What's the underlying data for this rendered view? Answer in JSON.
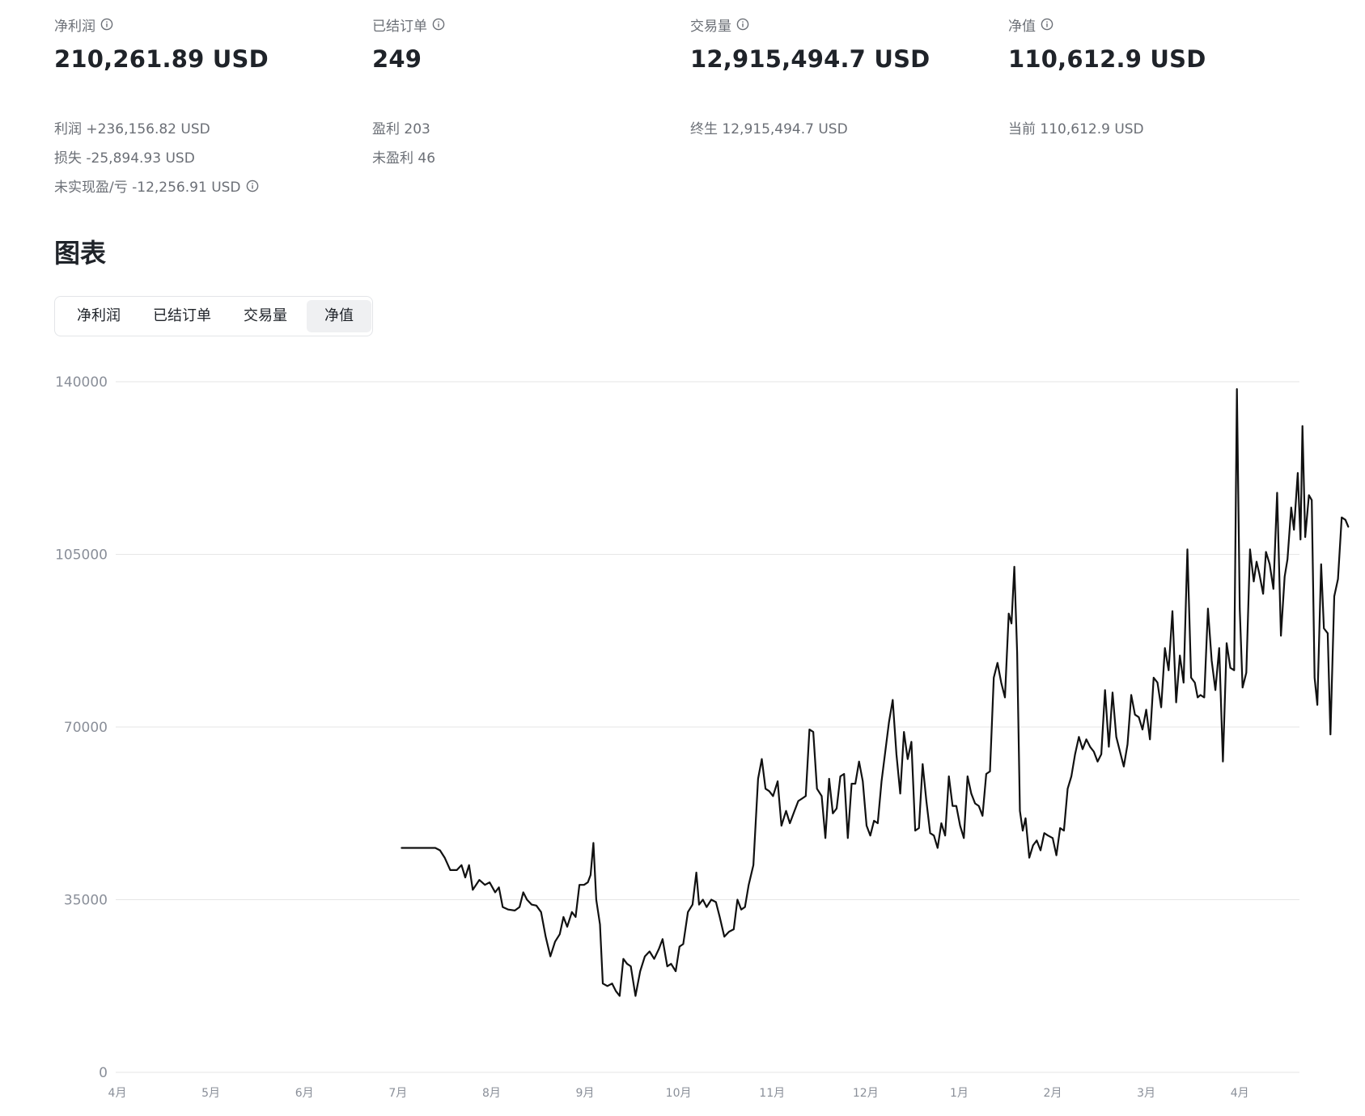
{
  "stats": [
    {
      "label": "净利润",
      "value": "210,261.89 USD"
    },
    {
      "label": "已结订单",
      "value": "249"
    },
    {
      "label": "交易量",
      "value": "12,915,494.7 USD"
    },
    {
      "label": "净值",
      "value": "110,612.9 USD"
    }
  ],
  "details": {
    "profit": "利润 +236,156.82 USD",
    "loss": "损失 -25,894.93 USD",
    "unrealized": "未实现盈/亏 -12,256.91 USD",
    "profitable": "盈利 203",
    "unprofitable": "未盈利 46",
    "lifetime": "终生 12,915,494.7 USD",
    "current": "当前 110,612.9 USD"
  },
  "section_title": "图表",
  "tabs": [
    {
      "label": "净利润",
      "active": false
    },
    {
      "label": "已结订单",
      "active": false
    },
    {
      "label": "交易量",
      "active": false
    },
    {
      "label": "净值",
      "active": true
    }
  ],
  "colors": {
    "line": "#111111",
    "grid": "#e6e6e6",
    "axis_text": "#8a8f99"
  },
  "chart_data": {
    "type": "line",
    "title": "",
    "xlabel": "",
    "ylabel": "",
    "ylim": [
      0,
      140000
    ],
    "yticks": [
      0,
      35000,
      70000,
      105000,
      140000
    ],
    "xlim": [
      0,
      12.65
    ],
    "xticks": [
      {
        "label": "4月",
        "x": 0
      },
      {
        "label": "5月",
        "x": 1
      },
      {
        "label": "6月",
        "x": 2
      },
      {
        "label": "7月",
        "x": 3
      },
      {
        "label": "8月",
        "x": 4
      },
      {
        "label": "9月",
        "x": 5
      },
      {
        "label": "10月",
        "x": 6
      },
      {
        "label": "11月",
        "x": 7
      },
      {
        "label": "12月",
        "x": 8
      },
      {
        "label": "1月",
        "x": 9
      },
      {
        "label": "2月",
        "x": 10
      },
      {
        "label": "3月",
        "x": 11
      },
      {
        "label": "4月",
        "x": 12
      }
    ],
    "grid": true,
    "legend": "none",
    "series": [
      {
        "name": "净值",
        "points": [
          [
            3.04,
            45500
          ],
          [
            3.2,
            45500
          ],
          [
            3.4,
            45500
          ],
          [
            3.45,
            45000
          ],
          [
            3.5,
            43500
          ],
          [
            3.56,
            41000
          ],
          [
            3.63,
            41000
          ],
          [
            3.68,
            42000
          ],
          [
            3.72,
            39500
          ],
          [
            3.76,
            42000
          ],
          [
            3.8,
            37000
          ],
          [
            3.87,
            39000
          ],
          [
            3.93,
            38000
          ],
          [
            3.98,
            38500
          ],
          [
            4.04,
            36500
          ],
          [
            4.08,
            37500
          ],
          [
            4.12,
            33500
          ],
          [
            4.18,
            33000
          ],
          [
            4.25,
            32800
          ],
          [
            4.3,
            33500
          ],
          [
            4.34,
            36500
          ],
          [
            4.38,
            35000
          ],
          [
            4.43,
            34000
          ],
          [
            4.48,
            33800
          ],
          [
            4.53,
            32500
          ],
          [
            4.58,
            27500
          ],
          [
            4.63,
            23500
          ],
          [
            4.68,
            26500
          ],
          [
            4.73,
            28000
          ],
          [
            4.77,
            31500
          ],
          [
            4.81,
            29500
          ],
          [
            4.86,
            32500
          ],
          [
            4.9,
            31500
          ],
          [
            4.94,
            38000
          ],
          [
            4.99,
            38000
          ],
          [
            5.03,
            38500
          ],
          [
            5.06,
            40000
          ],
          [
            5.09,
            46500
          ],
          [
            5.12,
            35000
          ],
          [
            5.16,
            30000
          ],
          [
            5.19,
            18000
          ],
          [
            5.24,
            17500
          ],
          [
            5.29,
            18000
          ],
          [
            5.33,
            16500
          ],
          [
            5.37,
            15500
          ],
          [
            5.41,
            23000
          ],
          [
            5.45,
            22000
          ],
          [
            5.49,
            21500
          ],
          [
            5.54,
            15500
          ],
          [
            5.59,
            20500
          ],
          [
            5.64,
            23500
          ],
          [
            5.69,
            24500
          ],
          [
            5.74,
            23000
          ],
          [
            5.79,
            25000
          ],
          [
            5.83,
            27000
          ],
          [
            5.88,
            21500
          ],
          [
            5.92,
            22000
          ],
          [
            5.97,
            20500
          ],
          [
            6.01,
            25500
          ],
          [
            6.05,
            26000
          ],
          [
            6.1,
            32500
          ],
          [
            6.15,
            34000
          ],
          [
            6.19,
            40500
          ],
          [
            6.22,
            34000
          ],
          [
            6.26,
            35000
          ],
          [
            6.3,
            33500
          ],
          [
            6.35,
            35000
          ],
          [
            6.4,
            34500
          ],
          [
            6.44,
            31500
          ],
          [
            6.49,
            27500
          ],
          [
            6.54,
            28500
          ],
          [
            6.59,
            29000
          ],
          [
            6.63,
            35000
          ],
          [
            6.67,
            33000
          ],
          [
            6.71,
            33500
          ],
          [
            6.75,
            38000
          ],
          [
            6.8,
            42000
          ],
          [
            6.85,
            59500
          ],
          [
            6.89,
            63500
          ],
          [
            6.93,
            57500
          ],
          [
            6.97,
            57000
          ],
          [
            7.01,
            56000
          ],
          [
            7.06,
            59000
          ],
          [
            7.1,
            50000
          ],
          [
            7.15,
            53000
          ],
          [
            7.19,
            50500
          ],
          [
            7.24,
            53000
          ],
          [
            7.28,
            55000
          ],
          [
            7.32,
            55500
          ],
          [
            7.36,
            56000
          ],
          [
            7.4,
            69500
          ],
          [
            7.44,
            69000
          ],
          [
            7.48,
            57500
          ],
          [
            7.53,
            56000
          ],
          [
            7.57,
            47500
          ],
          [
            7.61,
            59500
          ],
          [
            7.65,
            52500
          ],
          [
            7.69,
            53500
          ],
          [
            7.73,
            60000
          ],
          [
            7.77,
            60500
          ],
          [
            7.81,
            47500
          ],
          [
            7.85,
            58500
          ],
          [
            7.89,
            58500
          ],
          [
            7.93,
            63000
          ],
          [
            7.97,
            59000
          ],
          [
            8.01,
            50000
          ],
          [
            8.05,
            48000
          ],
          [
            8.09,
            51000
          ],
          [
            8.13,
            50500
          ],
          [
            8.17,
            59000
          ],
          [
            8.21,
            65000
          ],
          [
            8.25,
            71000
          ],
          [
            8.29,
            75500
          ],
          [
            8.33,
            64500
          ],
          [
            8.37,
            56500
          ],
          [
            8.41,
            69000
          ],
          [
            8.45,
            63500
          ],
          [
            8.49,
            67000
          ],
          [
            8.53,
            49000
          ],
          [
            8.57,
            49500
          ],
          [
            8.61,
            62500
          ],
          [
            8.65,
            55000
          ],
          [
            8.69,
            48500
          ],
          [
            8.73,
            48000
          ],
          [
            8.77,
            45500
          ],
          [
            8.81,
            50500
          ],
          [
            8.85,
            48000
          ],
          [
            8.89,
            60000
          ],
          [
            8.93,
            54000
          ],
          [
            8.97,
            54000
          ],
          [
            9.01,
            50000
          ],
          [
            9.05,
            47500
          ],
          [
            9.09,
            60000
          ],
          [
            9.13,
            56500
          ],
          [
            9.17,
            54500
          ],
          [
            9.21,
            54000
          ],
          [
            9.25,
            52000
          ],
          [
            9.29,
            60500
          ],
          [
            9.33,
            61000
          ],
          [
            9.37,
            80000
          ],
          [
            9.41,
            83000
          ],
          [
            9.45,
            79000
          ],
          [
            9.49,
            76000
          ],
          [
            9.53,
            93000
          ],
          [
            9.56,
            91000
          ],
          [
            9.59,
            102500
          ],
          [
            9.62,
            85000
          ],
          [
            9.65,
            53000
          ],
          [
            9.68,
            49000
          ],
          [
            9.71,
            51500
          ],
          [
            9.75,
            43500
          ],
          [
            9.79,
            46000
          ],
          [
            9.83,
            47000
          ],
          [
            9.87,
            45000
          ],
          [
            9.91,
            48500
          ],
          [
            9.95,
            48000
          ],
          [
            10.0,
            47500
          ],
          [
            10.04,
            44000
          ],
          [
            10.08,
            49500
          ],
          [
            10.12,
            49000
          ],
          [
            10.16,
            57500
          ],
          [
            10.2,
            60000
          ],
          [
            10.24,
            64500
          ],
          [
            10.28,
            68000
          ],
          [
            10.32,
            65500
          ],
          [
            10.36,
            67500
          ],
          [
            10.4,
            66000
          ],
          [
            10.44,
            65000
          ],
          [
            10.48,
            63000
          ],
          [
            10.52,
            64500
          ],
          [
            10.56,
            77500
          ],
          [
            10.6,
            66000
          ],
          [
            10.64,
            77000
          ],
          [
            10.68,
            68000
          ],
          [
            10.72,
            65000
          ],
          [
            10.76,
            62000
          ],
          [
            10.8,
            66500
          ],
          [
            10.84,
            76500
          ],
          [
            10.88,
            72500
          ],
          [
            10.92,
            72000
          ],
          [
            10.96,
            69500
          ],
          [
            11.0,
            73500
          ],
          [
            11.04,
            67500
          ],
          [
            11.08,
            80000
          ],
          [
            11.12,
            79000
          ],
          [
            11.16,
            74000
          ],
          [
            11.2,
            86000
          ],
          [
            11.24,
            81500
          ],
          [
            11.28,
            93500
          ],
          [
            11.32,
            75000
          ],
          [
            11.36,
            84500
          ],
          [
            11.4,
            79000
          ],
          [
            11.44,
            106000
          ],
          [
            11.48,
            80000
          ],
          [
            11.52,
            79000
          ],
          [
            11.55,
            76000
          ],
          [
            11.58,
            76500
          ],
          [
            11.62,
            76000
          ],
          [
            11.66,
            94000
          ],
          [
            11.7,
            83500
          ],
          [
            11.74,
            77500
          ],
          [
            11.78,
            86000
          ],
          [
            11.82,
            63000
          ],
          [
            11.86,
            87000
          ],
          [
            11.9,
            82000
          ],
          [
            11.94,
            81500
          ],
          [
            11.97,
            138500
          ],
          [
            12.0,
            94000
          ],
          [
            12.03,
            78000
          ],
          [
            12.07,
            81000
          ],
          [
            12.11,
            106000
          ],
          [
            12.15,
            99500
          ],
          [
            12.18,
            103500
          ],
          [
            12.21,
            101000
          ],
          [
            12.25,
            97000
          ],
          [
            12.28,
            105500
          ],
          [
            12.32,
            103000
          ],
          [
            12.36,
            98000
          ],
          [
            12.4,
            117500
          ],
          [
            12.44,
            88500
          ],
          [
            12.48,
            100500
          ],
          [
            12.51,
            104000
          ],
          [
            12.55,
            114500
          ],
          [
            12.58,
            110000
          ],
          [
            12.62,
            121500
          ],
          [
            12.65,
            108000
          ],
          [
            12.67,
            131000
          ],
          [
            12.7,
            108500
          ],
          [
            12.74,
            117000
          ],
          [
            12.77,
            116000
          ],
          [
            12.8,
            80000
          ],
          [
            12.83,
            74500
          ],
          [
            12.87,
            103000
          ],
          [
            12.9,
            90000
          ],
          [
            12.94,
            89000
          ],
          [
            12.97,
            68500
          ],
          [
            13.01,
            96500
          ],
          [
            13.05,
            100000
          ],
          [
            13.09,
            112500
          ],
          [
            13.13,
            112000
          ],
          [
            13.16,
            110600
          ]
        ]
      }
    ]
  }
}
